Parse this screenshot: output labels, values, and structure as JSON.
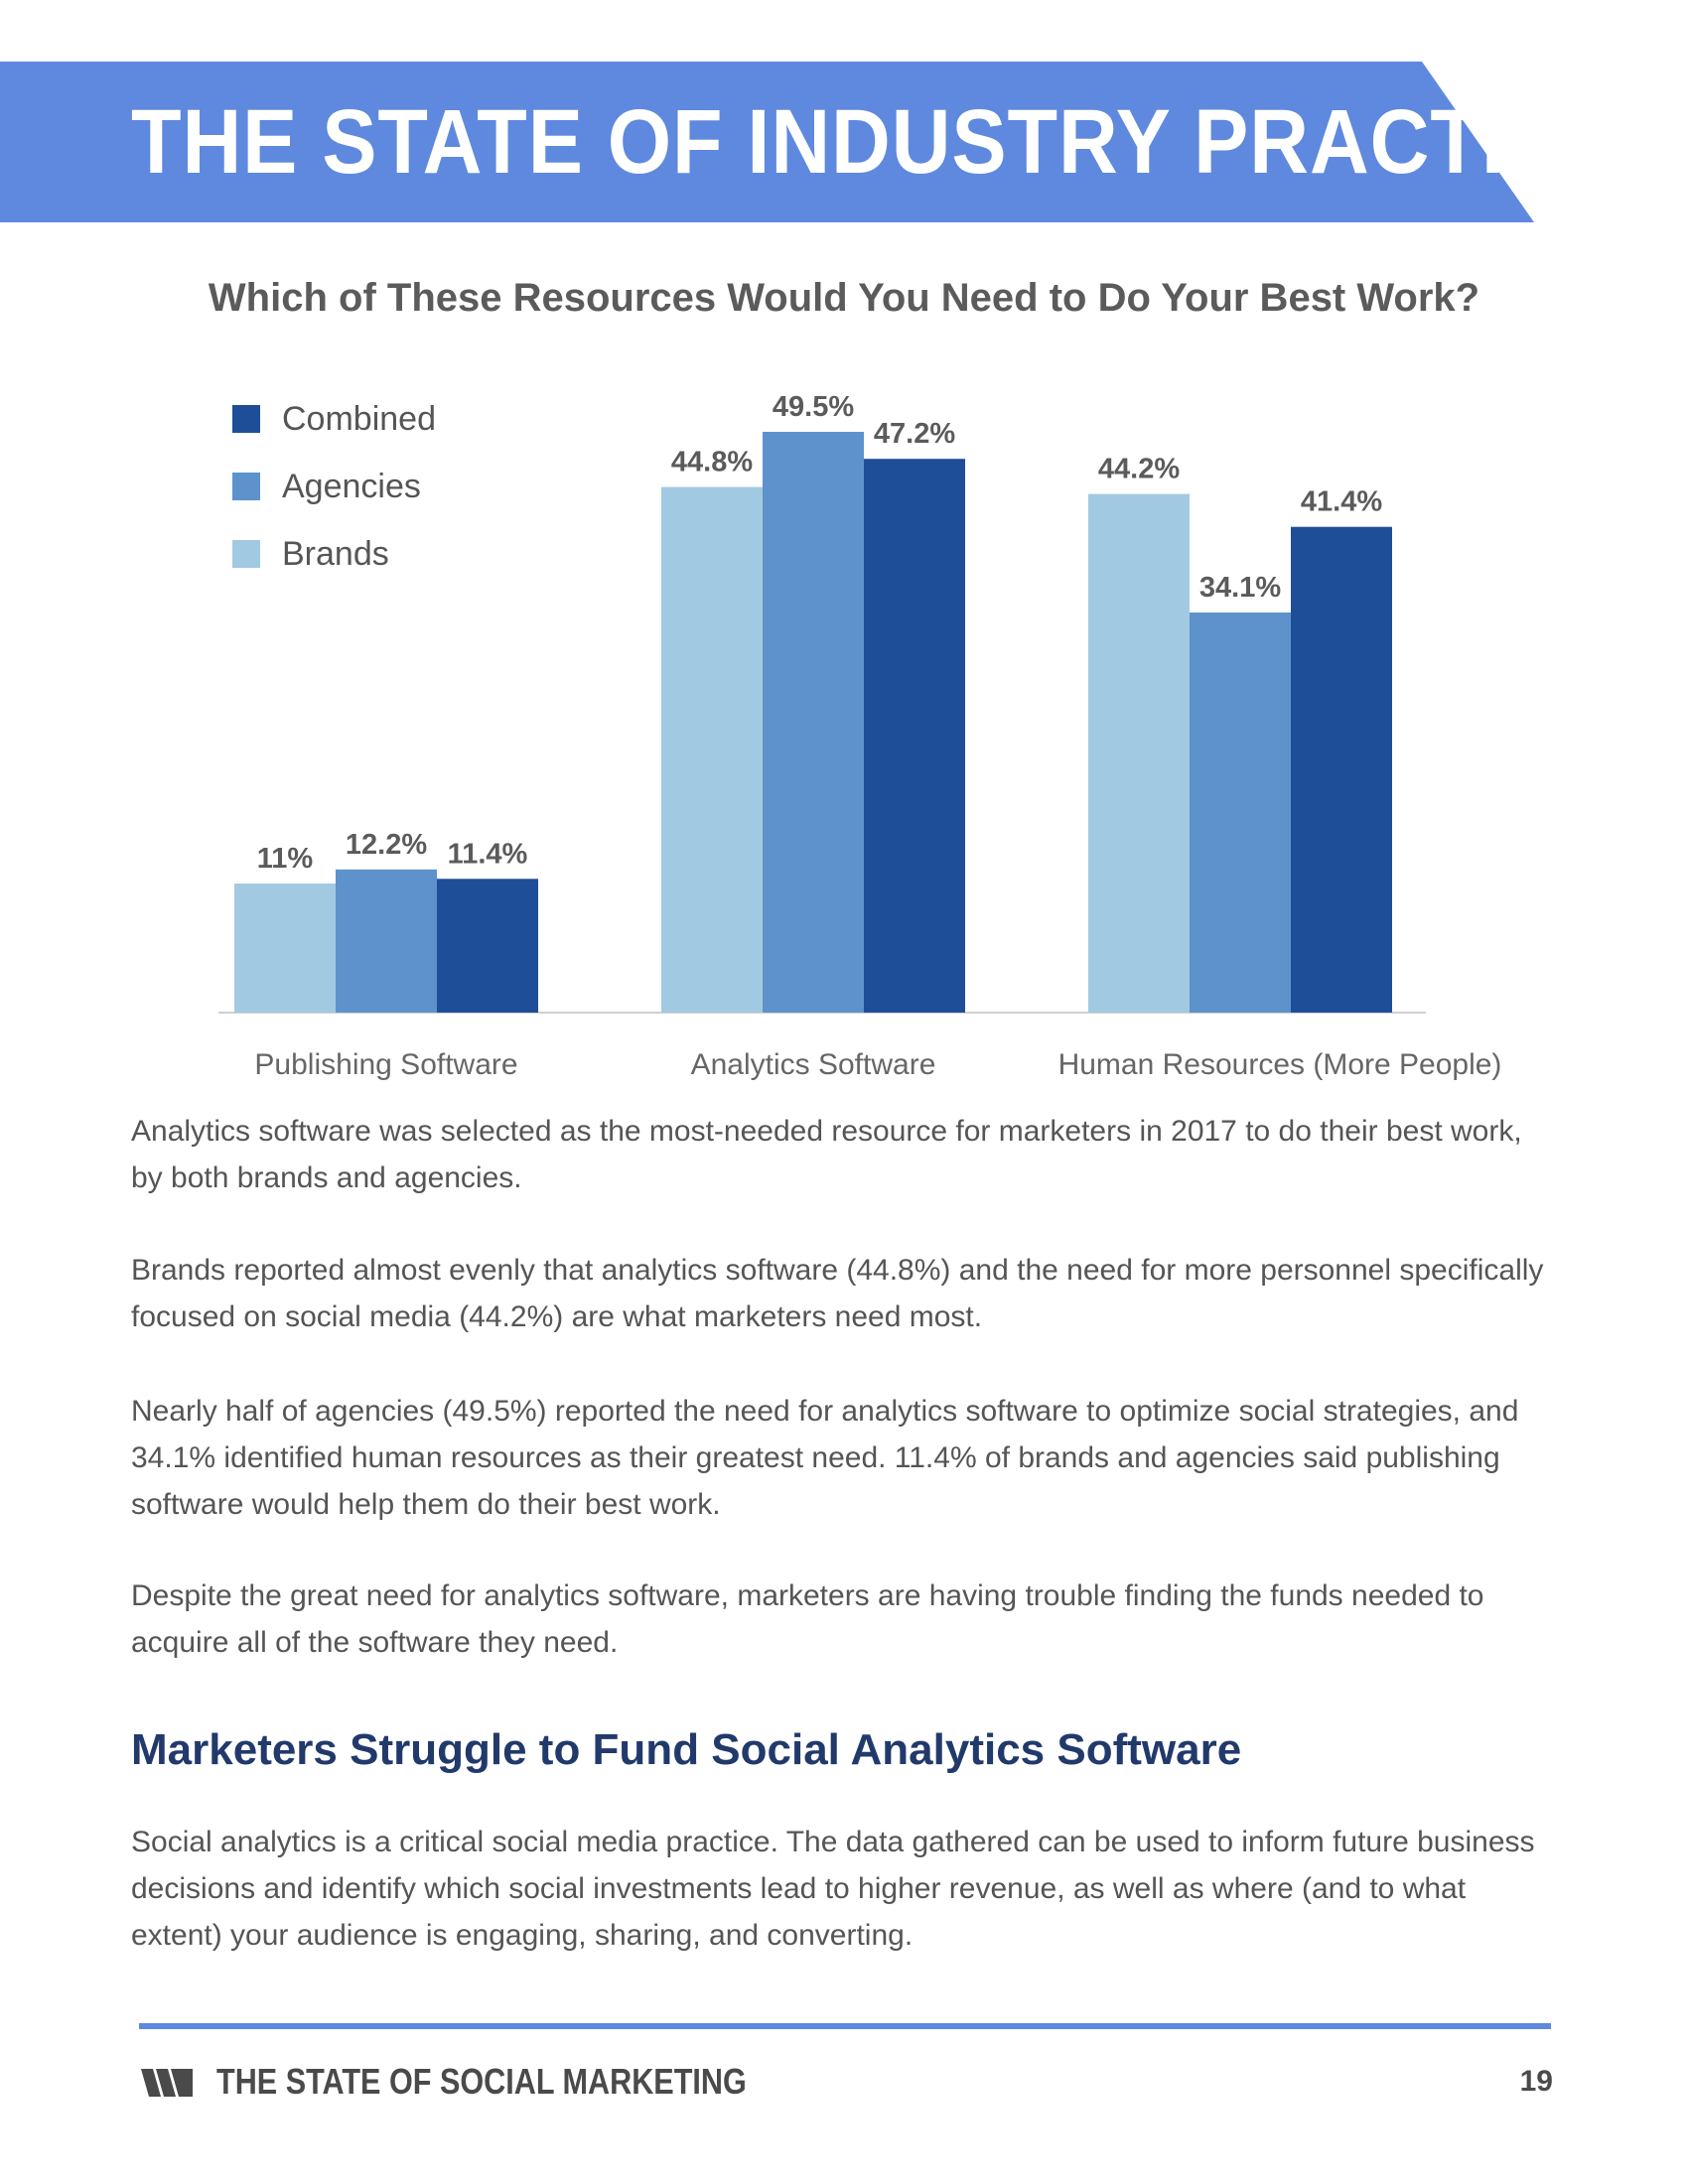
{
  "header": {
    "title": "THE STATE OF INDUSTRY PRACTICES"
  },
  "chart_data": {
    "type": "bar",
    "title": "Which of These Resources Would You Need to Do Your Best Work?",
    "categories": [
      "Publishing Software",
      "Analytics Software",
      "Human Resources (More People)"
    ],
    "series": [
      {
        "name": "Brands",
        "values": [
          11,
          44.8,
          44.2
        ],
        "labels": [
          "11%",
          "44.8%",
          "44.2%"
        ],
        "color": "#a2c9e2"
      },
      {
        "name": "Agencies",
        "values": [
          12.2,
          49.5,
          34.1
        ],
        "labels": [
          "12.2%",
          "49.5%",
          "34.1%"
        ],
        "color": "#5e92cc"
      },
      {
        "name": "Combined",
        "values": [
          11.4,
          47.2,
          41.4
        ],
        "labels": [
          "11.4%",
          "47.2%",
          "41.4%"
        ],
        "color": "#1f4e99"
      }
    ],
    "legend": {
      "position": "top-left",
      "order": [
        "Combined",
        "Agencies",
        "Brands"
      ]
    },
    "ylim": [
      0,
      60
    ],
    "xlabel": "",
    "ylabel": "",
    "grid": false
  },
  "body": {
    "paragraphs": [
      "Analytics software was selected as the most-needed resource for marketers in 2017 to do their best work, by both brands and agencies.",
      "Brands reported almost evenly that analytics software (44.8%) and the need for more personnel specifically focused on social media (44.2%) are what marketers need most.",
      "Nearly half of agencies (49.5%) reported the need for analytics software to optimize social strategies, and 34.1% identified human resources as their greatest need. 11.4% of brands and agencies said publishing software would help them do their best work.",
      "Despite the great need for analytics software, marketers are having trouble finding the funds needed to acquire all of the software they need."
    ],
    "section_heading": "Marketers Struggle to Fund Social Analytics Software",
    "section_paragraph": "Social analytics is a critical social media practice. The data gathered can be used to inform future business decisions and identify which social investments lead to higher revenue, as well as where (and to what extent) your audience is engaging, sharing, and converting."
  },
  "footer": {
    "title": "THE STATE OF SOCIAL MARKETING",
    "page_number": "19",
    "logo_icon": "sprout-social-logo-icon"
  }
}
